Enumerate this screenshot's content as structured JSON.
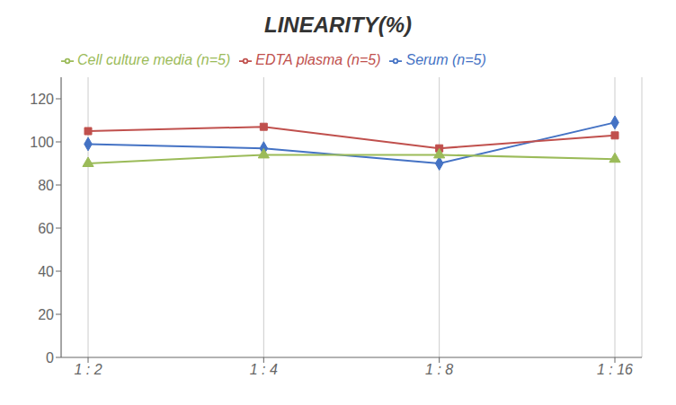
{
  "chart_data": {
    "type": "line",
    "title": "LINEARITY(%)",
    "categories": [
      "1 : 2",
      "1 : 4",
      "1 : 8",
      "1 : 16"
    ],
    "series": [
      {
        "name": "Serum (n=5)",
        "color": "#4472C4",
        "marker": "diamond",
        "values": [
          99,
          97,
          90,
          109
        ]
      },
      {
        "name": "EDTA plasma (n=5)",
        "color": "#C0504D",
        "marker": "square",
        "values": [
          105,
          107,
          97,
          103
        ]
      },
      {
        "name": "Cell culture media (n=5)",
        "color": "#9BBB59",
        "marker": "triangle",
        "values": [
          90,
          94,
          94,
          92
        ]
      }
    ],
    "ylim": [
      0,
      130
    ],
    "yticks": [
      0,
      20,
      40,
      60,
      80,
      100,
      120
    ],
    "grid": true,
    "legend": "upper left"
  }
}
